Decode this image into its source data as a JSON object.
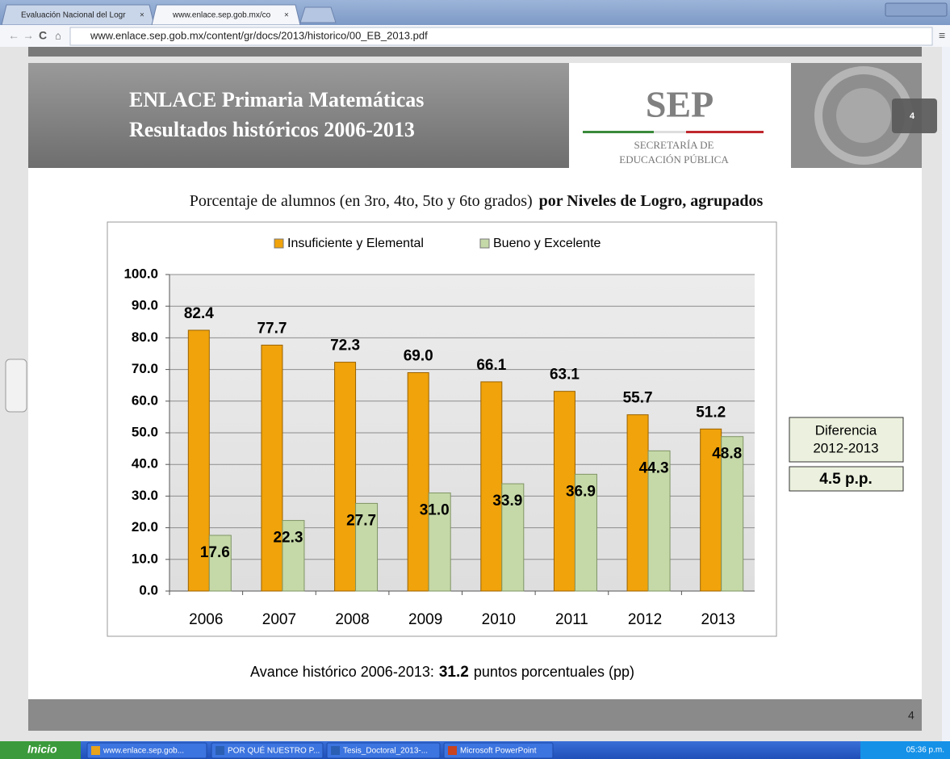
{
  "browser": {
    "tabs": [
      "Evaluación Nacional del Logr",
      "www.enlace.sep.gob.mx/co"
    ],
    "url": "www.enlace.sep.gob.mx/content/gr/docs/2013/historico/00_EB_2013.pdf",
    "page_indicator": "4"
  },
  "slide": {
    "title": [
      "ENLACE Primaria Matemáticas",
      "Resultados históricos 2006-2013"
    ],
    "logo": {
      "name": "SEP",
      "lines": [
        "SECRETARÍA DE",
        "EDUCACIÓN PÚBLICA"
      ]
    },
    "subtitle": {
      "regular": "Porcentaje de alumnos (en 3ro, 4to, 5to y 6to grados)",
      "bold": "por Niveles de Logro, agrupados"
    },
    "difference": {
      "label": [
        "Diferencia",
        "2012-2013"
      ],
      "value": "4.5 p.p."
    },
    "summary": {
      "before": "Avance histórico 2006-2013:",
      "bold": "31.2",
      "after": "puntos porcentuales (pp)"
    },
    "page_number": "4"
  },
  "chart_data": {
    "type": "bar",
    "categories": [
      "2006",
      "2007",
      "2008",
      "2009",
      "2010",
      "2011",
      "2012",
      "2013"
    ],
    "series": [
      {
        "name": "Insuficiente y Elemental",
        "color": "#f0a30a",
        "values": [
          82.4,
          77.7,
          72.3,
          69.0,
          66.1,
          63.1,
          55.7,
          51.2
        ],
        "value_labels": [
          "82.4",
          "77.7",
          "72.3",
          "69.0",
          "66.1",
          "63.1",
          "55.7",
          "51.2"
        ]
      },
      {
        "name": "Bueno y Excelente",
        "color": "#c5d9a8",
        "values": [
          17.6,
          22.3,
          27.7,
          31.0,
          33.9,
          36.9,
          44.3,
          48.8
        ],
        "value_labels": [
          "17.6",
          "22.3",
          "27.7",
          "31.0",
          "33.9",
          "36.9",
          "44.3",
          "48.8"
        ]
      }
    ],
    "ylim": [
      0,
      100
    ],
    "yticks": [
      {
        "value": 0,
        "label": "0.0"
      },
      {
        "value": 10,
        "label": "10.0"
      },
      {
        "value": 20,
        "label": "20.0"
      },
      {
        "value": 30,
        "label": "30.0"
      },
      {
        "value": 40,
        "label": "40.0"
      },
      {
        "value": 50,
        "label": "50.0"
      },
      {
        "value": 60,
        "label": "60.0"
      },
      {
        "value": 70,
        "label": "70.0"
      },
      {
        "value": 80,
        "label": "80.0"
      },
      {
        "value": 90,
        "label": "90.0"
      },
      {
        "value": 100,
        "label": "100.0"
      }
    ],
    "grid": true,
    "legend": "top"
  },
  "taskbar": {
    "start": "Inicio",
    "items": [
      "www.enlace.sep.gob...",
      "POR QUÉ NUESTRO P...",
      "Tesis_Doctoral_2013-...",
      "Microsoft PowerPoint"
    ],
    "clock": "05:36 p.m."
  }
}
